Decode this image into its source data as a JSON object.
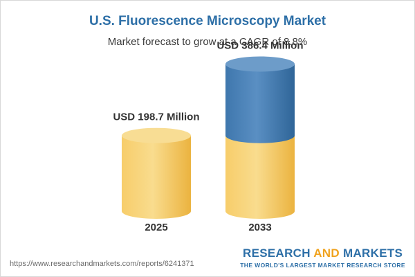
{
  "chart_data": {
    "type": "bar",
    "title": "U.S. Fluorescence Microscopy Market",
    "subtitle": "Market forecast to grow at a CAGR of 8.8%",
    "categories": [
      "2025",
      "2033"
    ],
    "values": [
      198.7,
      386.4
    ],
    "value_labels": [
      "USD 198.7 Million",
      "USD 386.4 Million"
    ],
    "base_value_2033": 198.7,
    "growth_portion_2033": 187.7,
    "unit": "USD Million",
    "colors": {
      "base": "#f3c35c",
      "base_top": "#f8dd94",
      "growth": "#4a82b8",
      "growth_top": "#6d9cc9"
    },
    "grid": false,
    "legend": "none"
  },
  "footer": {
    "url": "https://www.researchandmarkets.com/reports/6241371"
  },
  "brand": {
    "word1": "RESEARCH",
    "word2": "AND",
    "word3": "MARKETS",
    "tagline": "THE WORLD'S LARGEST MARKET RESEARCH STORE"
  }
}
